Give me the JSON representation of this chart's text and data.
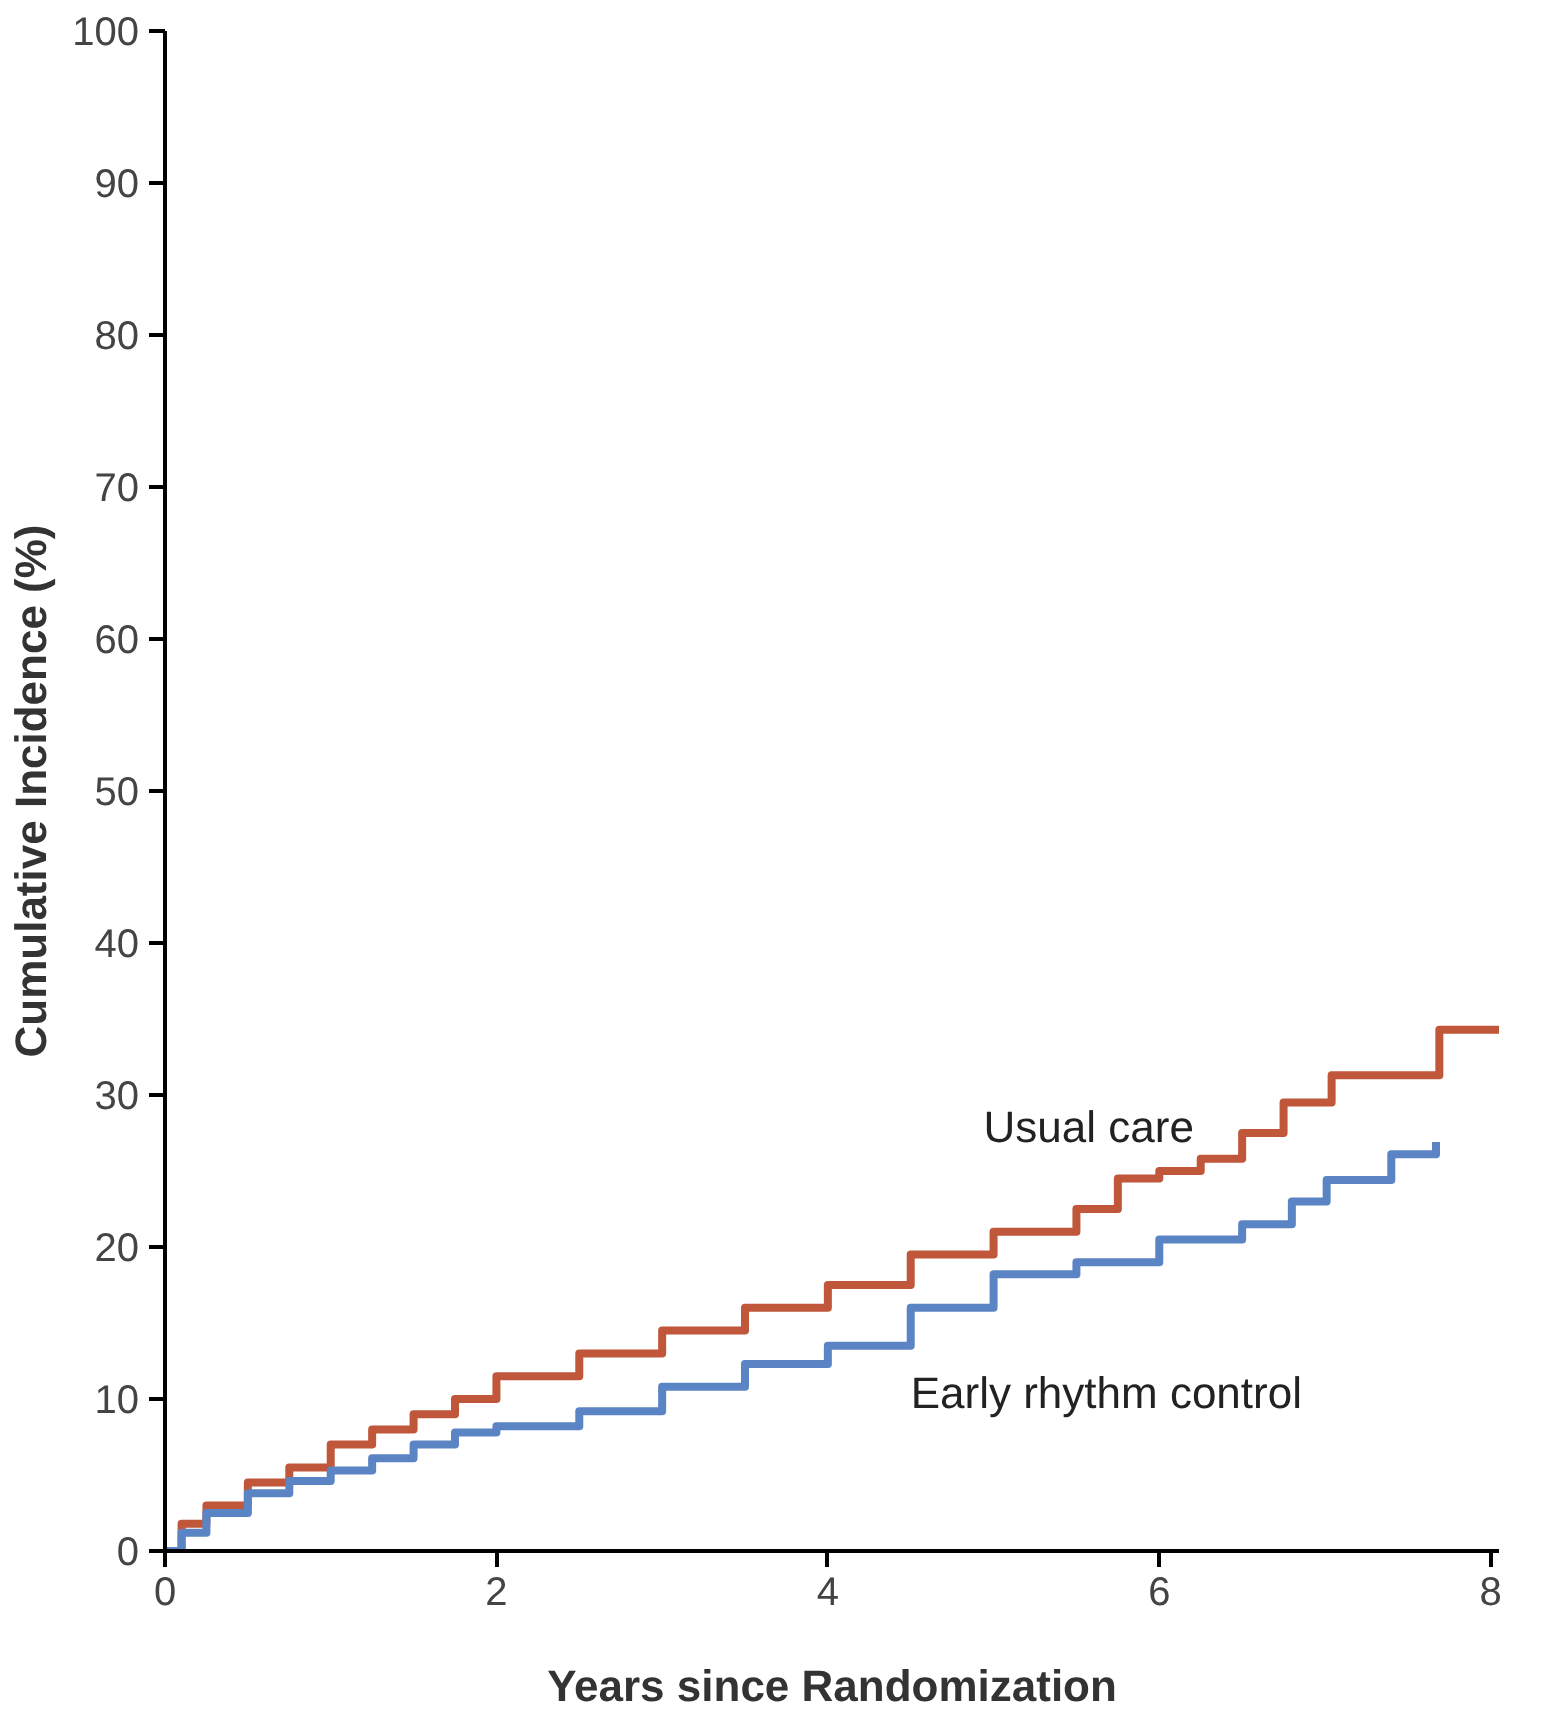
{
  "chart_data": {
    "type": "step",
    "xlabel": "Years since Randomization",
    "ylabel": "Cumulative Incidence (%)",
    "xlim": [
      0,
      8.05
    ],
    "ylim": [
      0,
      100
    ],
    "xticks": [
      0,
      2,
      4,
      6,
      8
    ],
    "yticks": [
      0,
      10,
      20,
      30,
      40,
      50,
      60,
      70,
      80,
      90,
      100
    ],
    "grid": false,
    "legend": false,
    "series": [
      {
        "name": "Usual care",
        "color": "#c0573a",
        "x": [
          0,
          0.1,
          0.25,
          0.5,
          0.75,
          1,
          1.25,
          1.5,
          1.75,
          2,
          2.5,
          3,
          3.5,
          4,
          4.5,
          5,
          5.5,
          5.75,
          6,
          6.25,
          6.5,
          6.75,
          7.04,
          7.69,
          8.05
        ],
        "values": [
          0,
          1.8,
          3,
          4.5,
          5.5,
          7,
          8,
          9,
          10,
          11.5,
          13,
          14.5,
          16,
          17.5,
          19.5,
          21,
          22.5,
          24.5,
          25,
          25.8,
          27.5,
          29.5,
          31.3,
          34.3,
          34.3
        ]
      },
      {
        "name": "Early rhythm control",
        "color": "#5b84c4",
        "x": [
          0,
          0.1,
          0.25,
          0.5,
          0.75,
          1,
          1.25,
          1.5,
          1.75,
          2,
          2.5,
          3,
          3.5,
          4,
          4.5,
          5,
          5.5,
          6,
          6.5,
          6.8,
          7.01,
          7.4,
          7.67
        ],
        "values": [
          0,
          1.2,
          2.5,
          3.8,
          4.6,
          5.3,
          6.1,
          7,
          7.8,
          8.2,
          9.2,
          10.8,
          12.3,
          13.5,
          16,
          18.2,
          19,
          20.5,
          21.5,
          23,
          24.4,
          26.1,
          26.9
        ]
      }
    ]
  }
}
